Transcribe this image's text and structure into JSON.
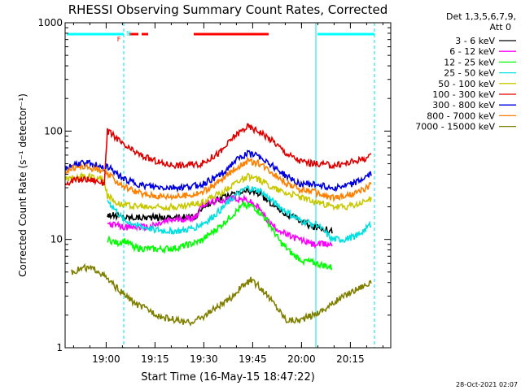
{
  "chart_data": {
    "type": "line",
    "title": "RHESSI Observing Summary Count Rates, Corrected",
    "ylabel": "Corrected Count Rate (s⁻¹ detector⁻¹)",
    "xlabel": "Start Time (16-May-15 18:47:22)",
    "yscale": "log",
    "ylim": [
      1,
      1000
    ],
    "xlim_minutes": [
      0,
      100
    ],
    "x_ticks": [
      {
        "label": "19:00",
        "min": 12.6
      },
      {
        "label": "19:15",
        "min": 27.6
      },
      {
        "label": "19:30",
        "min": 42.6
      },
      {
        "label": "19:45",
        "min": 57.6
      },
      {
        "label": "20:00",
        "min": 72.6
      },
      {
        "label": "20:15",
        "min": 87.6
      }
    ],
    "y_ticks": [
      {
        "label": "1",
        "value": 1
      },
      {
        "label": "10",
        "value": 10
      },
      {
        "label": "100",
        "value": 100
      },
      {
        "label": "1000",
        "value": 1000
      }
    ],
    "legend_header": [
      "Det 1,3,5,6,7,9,",
      "Att 0"
    ],
    "timestamp": "28-Oct-2021 02:07",
    "flags": [
      {
        "label": "F",
        "color": "#ff0000",
        "text_at": 16.5
      },
      {
        "label": "N",
        "color": "#00ffff",
        "text_at": 19.5
      }
    ],
    "flag_segments": [
      {
        "color": "#ff0000",
        "from": 19.5,
        "to": 22.5
      },
      {
        "color": "#ff0000",
        "from": 23.5,
        "to": 25.5
      },
      {
        "color": "#ff0000",
        "from": 39.5,
        "to": 62.5
      },
      {
        "color": "#00ffff",
        "from": 0.5,
        "to": 18.0
      },
      {
        "color": "#00ffff",
        "from": 77.5,
        "to": 95.0
      }
    ],
    "night_boundaries": [
      0,
      18,
      77,
      95
    ],
    "series": [
      {
        "name": "3 - 6 keV",
        "color": "#000000",
        "x": [
          13,
          18,
          26,
          32,
          40,
          42,
          48,
          52,
          56,
          59,
          63,
          68,
          72,
          76,
          78,
          82
        ],
        "y": [
          17,
          16,
          16,
          16,
          16,
          20,
          24,
          26,
          28,
          27,
          22,
          17,
          15,
          13,
          13,
          12
        ]
      },
      {
        "name": "6 - 12 keV",
        "color": "#ff00ff",
        "x": [
          13,
          18,
          26,
          32,
          40,
          42,
          48,
          52,
          56,
          59,
          63,
          68,
          72,
          76,
          82
        ],
        "y": [
          14,
          13,
          13,
          15,
          16,
          21,
          23,
          24,
          23,
          20,
          14,
          11,
          10,
          9,
          9
        ]
      },
      {
        "name": "12 - 25 keV",
        "color": "#00ff00",
        "x": [
          13,
          16,
          18,
          22,
          28,
          34,
          40,
          42,
          48,
          52,
          55,
          58,
          62,
          66,
          70,
          73,
          76,
          82
        ],
        "y": [
          10,
          9.2,
          9.8,
          8.3,
          8.1,
          8.3,
          9.3,
          9.8,
          13.5,
          17.5,
          21,
          20,
          15,
          9.5,
          7.2,
          6.4,
          6.1,
          5.5
        ]
      },
      {
        "name": "25 - 50 keV",
        "color": "#00e0e0",
        "x": [
          13,
          18,
          24,
          30,
          36,
          40,
          44,
          48,
          52,
          56,
          60,
          64,
          68,
          72,
          76,
          77,
          82,
          86,
          90,
          94
        ],
        "y": [
          23,
          15,
          13,
          12,
          12,
          13,
          15,
          19,
          25,
          30,
          28,
          22,
          18,
          15,
          14,
          14,
          10,
          10,
          11,
          14
        ]
      },
      {
        "name": "50 - 100 keV",
        "color": "#c8c800",
        "x": [
          0,
          4,
          8,
          12,
          13,
          16,
          18,
          24,
          30,
          36,
          42,
          48,
          52,
          56,
          60,
          64,
          68,
          72,
          76,
          78,
          82,
          86,
          90,
          94
        ],
        "y": [
          36,
          38,
          38,
          36,
          25,
          22,
          21,
          20,
          20,
          20,
          22,
          27,
          33,
          38,
          35,
          30,
          27,
          25,
          22,
          22,
          20,
          20,
          21,
          24
        ]
      },
      {
        "name": "100 - 300 keV",
        "color": "#e00000",
        "x": [
          0,
          3,
          6,
          9,
          12,
          13,
          16,
          18,
          24,
          30,
          36,
          42,
          48,
          52,
          56,
          60,
          64,
          68,
          72,
          76,
          78,
          82,
          86,
          90,
          94
        ],
        "y": [
          33,
          35,
          36,
          35,
          33,
          100,
          85,
          73,
          58,
          50,
          48,
          50,
          65,
          90,
          110,
          98,
          80,
          62,
          53,
          50,
          50,
          48,
          50,
          54,
          58
        ]
      },
      {
        "name": "300 - 800 keV",
        "color": "#0000e0",
        "x": [
          0,
          3,
          6,
          9,
          12,
          13,
          16,
          18,
          24,
          30,
          36,
          42,
          48,
          52,
          56,
          60,
          64,
          68,
          72,
          76,
          78,
          82,
          86,
          90,
          94
        ],
        "y": [
          45,
          49,
          51,
          49,
          46,
          47,
          40,
          36,
          31,
          30,
          30,
          32,
          40,
          52,
          62,
          58,
          47,
          38,
          33,
          32,
          32,
          30,
          31,
          34,
          40
        ]
      },
      {
        "name": "800 - 7000 keV",
        "color": "#ff8000",
        "x": [
          0,
          3,
          6,
          9,
          12,
          13,
          16,
          18,
          24,
          30,
          36,
          42,
          48,
          52,
          56,
          60,
          64,
          68,
          72,
          76,
          78,
          82,
          86,
          90,
          94
        ],
        "y": [
          43,
          46,
          47,
          45,
          42,
          40,
          34,
          31,
          26,
          25,
          25,
          27,
          35,
          45,
          53,
          50,
          41,
          33,
          29,
          28,
          26,
          24,
          25,
          27,
          32
        ]
      },
      {
        "name": "7000 - 15000 keV",
        "color": "#808000",
        "x": [
          2,
          6,
          10,
          14,
          18,
          22,
          26,
          30,
          34,
          38,
          42,
          46,
          50,
          54,
          57,
          60,
          64,
          68,
          72,
          76,
          80,
          84,
          88,
          92,
          94
        ],
        "y": [
          5,
          5.5,
          5.2,
          4,
          3.1,
          2.5,
          2.2,
          1.9,
          1.8,
          1.7,
          1.9,
          2.3,
          2.7,
          3.6,
          4.2,
          3.6,
          2.6,
          1.8,
          1.8,
          2,
          2.3,
          2.8,
          3.3,
          3.8,
          3.9
        ]
      }
    ]
  }
}
